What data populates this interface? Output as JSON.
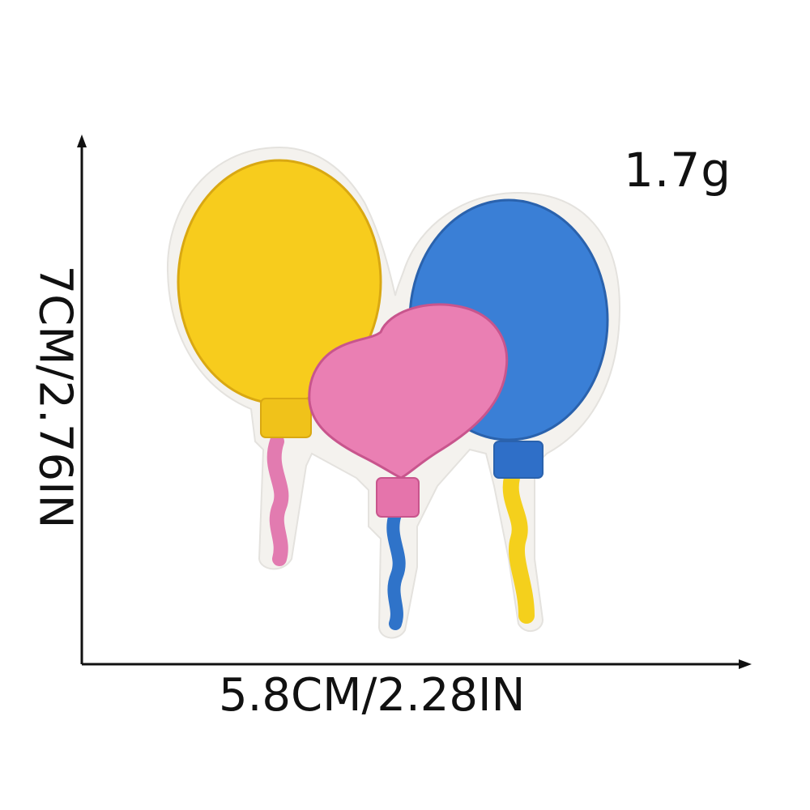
{
  "annotations": {
    "weight": "1.7g",
    "width": "5.8CM/2.28IN",
    "height": "7CM/2.76IN"
  },
  "patch": {
    "balloons": [
      {
        "name": "yellow-balloon",
        "color": "#f7cc1d",
        "string_color": "#e27bb0"
      },
      {
        "name": "pink-balloon",
        "color": "#ea7fb3",
        "string_color": "#2f73c9"
      },
      {
        "name": "blue-balloon",
        "color": "#3a7fd6",
        "string_color": "#f4d01c"
      }
    ],
    "backing_color": "#f4f2ee"
  },
  "colors": {
    "text": "#111111",
    "axis": "#111111"
  }
}
